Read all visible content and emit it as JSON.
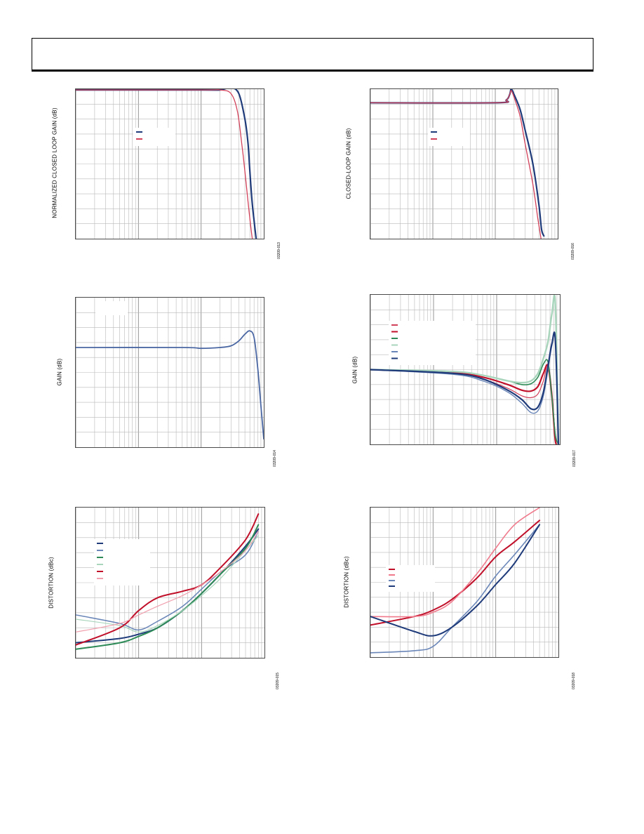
{
  "chart_data": [
    {
      "id": "c1",
      "type": "line",
      "ylabel": "NORMALIZED CLOSED LOOP GAIN (dB)",
      "figure_id": "03209-013",
      "x_scale": "log",
      "xlim": [
        1,
        1000
      ],
      "ylim": [
        -10,
        0
      ],
      "legend": [
        {
          "color": "#1f3b7a"
        },
        {
          "color": "#d2415a"
        }
      ],
      "series": [
        {
          "color": "#1f3b7a",
          "width": 2.2,
          "x": [
            1,
            100,
            200,
            300,
            400,
            500,
            560,
            600,
            650,
            700,
            780
          ],
          "y": [
            -0.05,
            -0.05,
            -0.05,
            0.1,
            -0.3,
            -2,
            -3.6,
            -5.5,
            -7.5,
            -8.8,
            -10.5
          ]
        },
        {
          "color": "#d2415a",
          "width": 1.3,
          "x": [
            1,
            100,
            200,
            300,
            380,
            450,
            500,
            560,
            620,
            680
          ],
          "y": [
            -0.05,
            -0.05,
            -0.05,
            -0.3,
            -1.5,
            -3.8,
            -5.5,
            -7.5,
            -9.2,
            -10.5
          ]
        }
      ]
    },
    {
      "id": "c2",
      "type": "line",
      "ylabel": "CLOSED-LOOP GAIN (dB)",
      "figure_id": "03209-016",
      "x_scale": "log",
      "xlim": [
        1,
        1000
      ],
      "ylim": [
        -10,
        1
      ],
      "legend": [
        {
          "color": "#1f3b7a"
        },
        {
          "color": "#d2415a"
        }
      ],
      "series": [
        {
          "color": "#1f3b7a",
          "width": 2.2,
          "x": [
            1,
            100,
            150,
            170,
            180,
            200,
            250,
            300,
            400,
            500,
            550,
            600
          ],
          "y": [
            0,
            0,
            0.2,
            0.6,
            1,
            0.6,
            -0.5,
            -2,
            -4.5,
            -7.5,
            -9.3,
            -9.8
          ]
        },
        {
          "color": "#d2415a",
          "width": 1.3,
          "x": [
            1,
            100,
            150,
            170,
            180,
            200,
            250,
            300,
            400,
            480,
            540
          ],
          "y": [
            0,
            0,
            0.2,
            0.6,
            0.9,
            0.4,
            -1,
            -3,
            -6,
            -8.5,
            -10
          ]
        }
      ]
    },
    {
      "id": "c3",
      "type": "line",
      "ylabel": "GAIN (dB)",
      "figure_id": "03209-014",
      "x_scale": "log",
      "xlim": [
        1,
        1000
      ],
      "ylim": [
        -6,
        3
      ],
      "legend": [],
      "series": [
        {
          "color": "#4a67a3",
          "width": 1.8,
          "x": [
            1,
            50,
            100,
            200,
            300,
            400,
            500,
            600,
            700,
            800,
            900,
            1000
          ],
          "y": [
            0,
            0,
            -0.05,
            0,
            0.1,
            0.4,
            0.8,
            1,
            0.6,
            -1.2,
            -3.5,
            -5.5
          ]
        }
      ]
    },
    {
      "id": "c4",
      "type": "line",
      "ylabel": "GAIN (dB)",
      "figure_id": "03209-017",
      "x_scale": "log",
      "xlim": [
        1,
        1000
      ],
      "ylim": [
        -4,
        4
      ],
      "legend": [
        {
          "color": "#d2415a"
        },
        {
          "color": "#c0102a"
        },
        {
          "color": "#2e8b57"
        },
        {
          "color": "#a8d5bc"
        },
        {
          "color": "#6a86b8"
        },
        {
          "color": "#1f3b7a"
        }
      ],
      "series": [
        {
          "color": "#d2415a",
          "width": 1.2,
          "x": [
            1,
            20,
            60,
            150,
            250,
            350,
            450,
            550,
            650,
            750,
            850,
            950
          ],
          "y": [
            0,
            -0.2,
            -0.5,
            -1,
            -1.4,
            -1.5,
            -1.3,
            -0.6,
            0.3,
            -1.2,
            -3.5,
            -4
          ]
        },
        {
          "color": "#c0102a",
          "width": 2.2,
          "x": [
            1,
            20,
            60,
            150,
            250,
            350,
            450,
            550,
            650,
            750,
            850,
            950
          ],
          "y": [
            0,
            -0.15,
            -0.4,
            -0.8,
            -1.1,
            -1.15,
            -0.9,
            -0.2,
            0.2,
            -1.5,
            -3.8,
            -4
          ]
        },
        {
          "color": "#2e8b57",
          "width": 1.6,
          "x": [
            1,
            20,
            60,
            150,
            250,
            350,
            450,
            550,
            650,
            750,
            850,
            950
          ],
          "y": [
            0,
            -0.1,
            -0.3,
            -0.6,
            -0.8,
            -0.75,
            -0.4,
            0.3,
            0.4,
            -1.5,
            -3.5,
            -4
          ]
        },
        {
          "color": "#a8d5bc",
          "width": 2.4,
          "x": [
            1,
            20,
            60,
            150,
            250,
            350,
            450,
            550,
            650,
            750,
            850,
            950
          ],
          "y": [
            0,
            -0.1,
            -0.3,
            -0.6,
            -0.7,
            -0.6,
            -0.2,
            0.6,
            1.5,
            3,
            3.5,
            -4
          ]
        },
        {
          "color": "#6a86b8",
          "width": 1.4,
          "x": [
            1,
            20,
            60,
            150,
            250,
            350,
            450,
            550,
            650,
            750,
            850,
            950
          ],
          "y": [
            0,
            -0.25,
            -0.6,
            -1.2,
            -1.8,
            -2.3,
            -2.2,
            -1.4,
            0,
            1.3,
            1.5,
            -4
          ]
        },
        {
          "color": "#1f3b7a",
          "width": 2.2,
          "x": [
            1,
            20,
            60,
            150,
            250,
            350,
            450,
            550,
            650,
            750,
            850,
            950
          ],
          "y": [
            0,
            -0.2,
            -0.5,
            -1.1,
            -1.6,
            -2.1,
            -2,
            -1.2,
            0.2,
            1.4,
            1.6,
            -4
          ]
        }
      ]
    },
    {
      "id": "c5",
      "type": "line",
      "ylabel": "DISTORTION (dBc)",
      "figure_id": "03209-015",
      "x_scale": "log",
      "xlim": [
        0.1,
        100
      ],
      "ylim": [
        -100,
        -30
      ],
      "legend": [
        {
          "color": "#1f3b7a"
        },
        {
          "color": "#6a86b8"
        },
        {
          "color": "#2e8b57"
        },
        {
          "color": "#a8d5bc"
        },
        {
          "color": "#c0102a"
        },
        {
          "color": "#f0a0ae"
        }
      ],
      "series": [
        {
          "color": "#1f3b7a",
          "width": 2,
          "x": [
            0.1,
            0.5,
            1,
            2,
            5,
            10,
            20,
            50,
            80
          ],
          "y": [
            -93,
            -91,
            -89,
            -86,
            -78,
            -70,
            -61,
            -48,
            -40
          ]
        },
        {
          "color": "#6a86b8",
          "width": 1.5,
          "x": [
            0.1,
            0.5,
            1,
            2,
            5,
            10,
            20,
            50,
            80
          ],
          "y": [
            -80,
            -84,
            -87,
            -83,
            -76,
            -68,
            -60,
            -52,
            -41
          ]
        },
        {
          "color": "#2e8b57",
          "width": 2,
          "x": [
            0.1,
            0.5,
            1,
            2,
            5,
            10,
            20,
            50,
            80
          ],
          "y": [
            -96,
            -93,
            -90,
            -86,
            -78,
            -70,
            -61,
            -49,
            -38
          ]
        },
        {
          "color": "#a8d5bc",
          "width": 1.2,
          "x": [
            0.1,
            0.5,
            1,
            2,
            5,
            10,
            20,
            50,
            80
          ],
          "y": [
            -82,
            -85,
            -88,
            -85,
            -78,
            -71,
            -63,
            -50,
            -43
          ]
        },
        {
          "color": "#c0102a",
          "width": 2,
          "x": [
            0.1,
            0.5,
            1,
            2,
            5,
            10,
            20,
            50,
            80
          ],
          "y": [
            -94,
            -86,
            -78,
            -72,
            -69,
            -66,
            -58,
            -45,
            -33
          ]
        },
        {
          "color": "#f0a0ae",
          "width": 1.2,
          "x": [
            0.1,
            0.5,
            1,
            2,
            5,
            10,
            20,
            50,
            80
          ],
          "y": [
            -88,
            -84,
            -80,
            -76,
            -71,
            -66,
            -60,
            -50,
            -41
          ]
        }
      ]
    },
    {
      "id": "c6",
      "type": "line",
      "ylabel": "DISTORTION (dBc)",
      "figure_id": "03209-018",
      "x_scale": "log",
      "xlim": [
        0.1,
        100
      ],
      "ylim": [
        -110,
        -40
      ],
      "legend": [
        {
          "color": "#c0102a"
        },
        {
          "color": "#f07a8c"
        },
        {
          "color": "#6a86b8"
        },
        {
          "color": "#1f3b7a"
        }
      ],
      "series": [
        {
          "color": "#c0102a",
          "width": 2,
          "x": [
            0.1,
            0.5,
            1,
            2,
            5,
            10,
            20,
            50
          ],
          "y": [
            -95,
            -91,
            -88,
            -83,
            -73,
            -63,
            -56,
            -46
          ]
        },
        {
          "color": "#f07a8c",
          "width": 1.6,
          "x": [
            0.1,
            0.5,
            1,
            2,
            5,
            10,
            20,
            50
          ],
          "y": [
            -91,
            -91,
            -89,
            -84,
            -71,
            -59,
            -48,
            -40
          ]
        },
        {
          "color": "#6a86b8",
          "width": 1.6,
          "x": [
            0.1,
            0.5,
            1,
            2,
            5,
            10,
            20,
            50
          ],
          "y": [
            -108,
            -107,
            -105,
            -96,
            -84,
            -72,
            -62,
            -48
          ]
        },
        {
          "color": "#1f3b7a",
          "width": 2,
          "x": [
            0.1,
            0.5,
            1,
            2,
            5,
            10,
            20,
            50
          ],
          "y": [
            -91,
            -98,
            -100,
            -96,
            -86,
            -76,
            -66,
            -48
          ]
        }
      ]
    }
  ]
}
